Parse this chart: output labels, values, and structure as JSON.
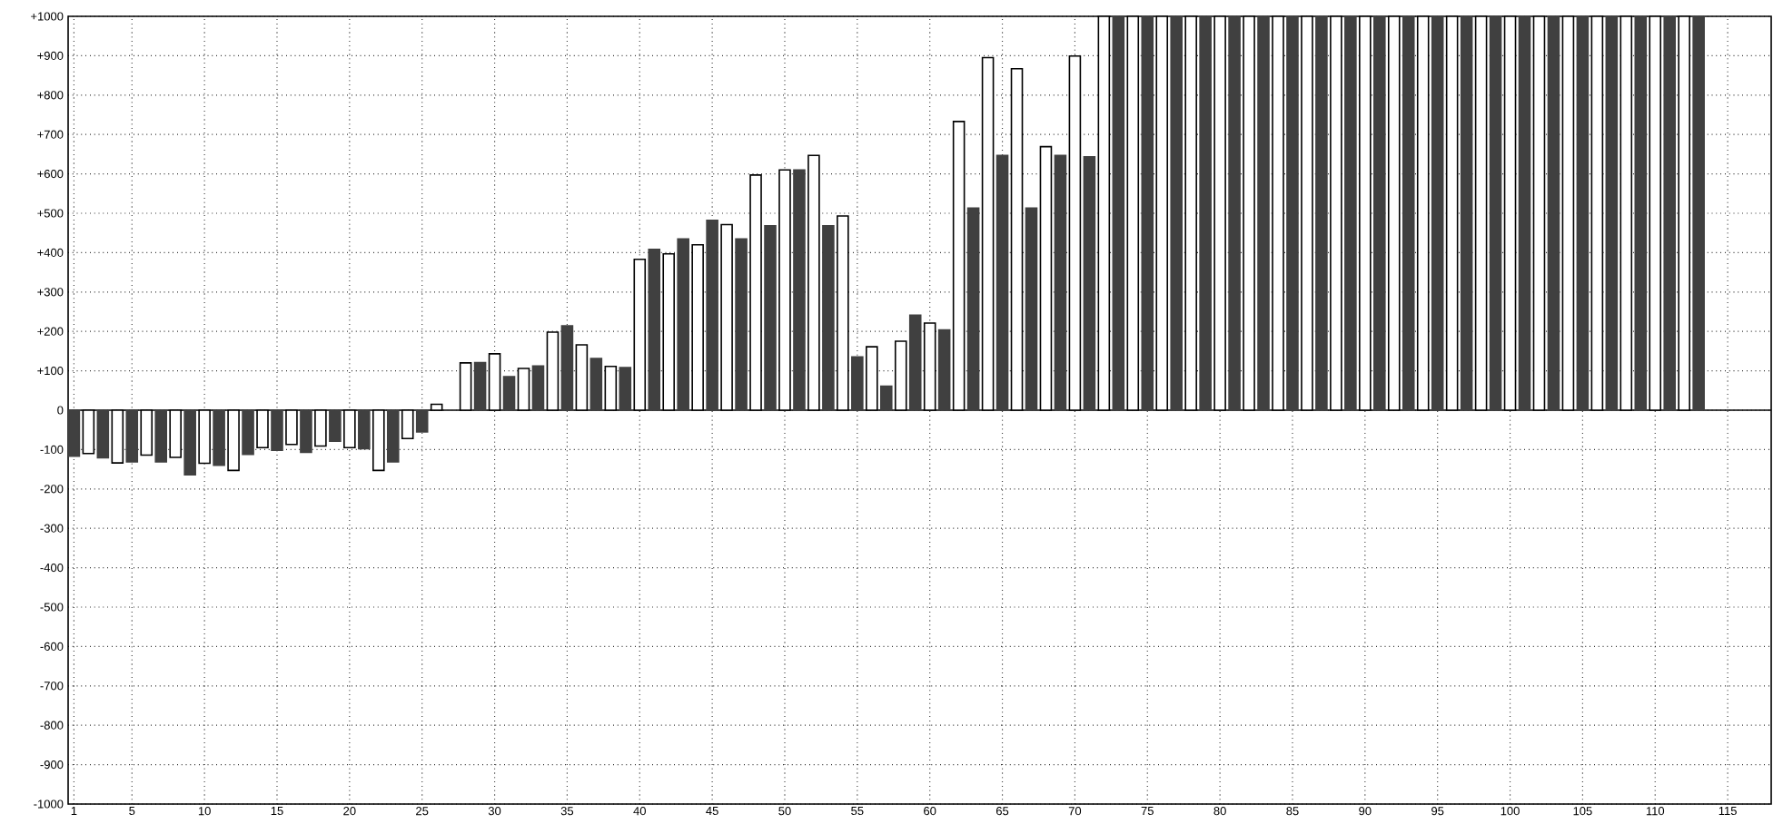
{
  "chart_data": {
    "type": "bar",
    "grid": true,
    "xlim": [
      0.6,
      118
    ],
    "xticks": [
      1,
      5,
      10,
      15,
      20,
      25,
      30,
      35,
      40,
      45,
      50,
      55,
      60,
      65,
      70,
      75,
      80,
      85,
      90,
      95,
      100,
      105,
      110,
      115
    ],
    "ylim": [
      -1000,
      1000
    ],
    "yticks": [
      {
        "value": -1000,
        "label": "-1000"
      },
      {
        "value": -900,
        "label": "-900"
      },
      {
        "value": -800,
        "label": "-800"
      },
      {
        "value": -700,
        "label": "-700"
      },
      {
        "value": -600,
        "label": "-600"
      },
      {
        "value": -500,
        "label": "-500"
      },
      {
        "value": -400,
        "label": "-400"
      },
      {
        "value": -300,
        "label": "-300"
      },
      {
        "value": -200,
        "label": "-200"
      },
      {
        "value": -100,
        "label": "-100"
      },
      0,
      {
        "value": 100,
        "label": "+100"
      },
      {
        "value": 200,
        "label": "+200"
      },
      {
        "value": 300,
        "label": "+300"
      },
      {
        "value": 400,
        "label": "+400"
      },
      {
        "value": 500,
        "label": "+500"
      },
      {
        "value": 600,
        "label": "+600"
      },
      {
        "value": 700,
        "label": "+700"
      },
      {
        "value": 800,
        "label": "+800"
      },
      {
        "value": 900,
        "label": "+900"
      },
      {
        "value": 1000,
        "label": "+1000"
      }
    ],
    "series": [
      {
        "color": "#404040",
        "x": [
          1,
          3,
          5,
          7,
          9,
          11,
          13,
          15,
          17,
          19,
          21,
          23,
          25,
          27,
          29,
          31,
          33,
          35,
          37,
          39,
          41,
          43,
          45,
          47,
          49,
          51,
          53,
          55,
          57,
          59,
          61,
          63,
          65,
          67,
          69,
          71,
          73,
          75,
          77,
          79,
          81,
          83,
          85,
          87,
          89,
          91,
          93,
          95,
          97,
          99,
          101,
          103,
          105,
          107,
          109,
          111,
          113
        ],
        "values": [
          -117,
          -121,
          -131,
          -131,
          -164,
          -140,
          -112,
          -102,
          -107,
          -79,
          -98,
          -131,
          -55,
          0,
          121,
          85,
          112,
          214,
          131,
          108,
          408,
          435,
          482,
          435,
          468,
          610,
          468,
          135,
          61,
          241,
          204,
          513,
          647,
          513,
          647,
          643,
          1000,
          1000,
          1000,
          1000,
          1000,
          1000,
          1000,
          1000,
          1000,
          1000,
          1000,
          1000,
          1000,
          1000,
          1000,
          1000,
          1000,
          1000,
          1000,
          1000,
          1000
        ]
      },
      {
        "color": "#ffffff",
        "x": [
          2,
          4,
          6,
          8,
          10,
          12,
          14,
          16,
          18,
          20,
          22,
          24,
          26,
          28,
          30,
          32,
          34,
          36,
          38,
          40,
          42,
          44,
          46,
          48,
          50,
          52,
          54,
          56,
          58,
          60,
          62,
          64,
          66,
          68,
          70,
          72,
          74,
          76,
          78,
          80,
          82,
          84,
          86,
          88,
          90,
          92,
          94,
          96,
          98,
          100,
          102,
          104,
          106,
          108,
          110,
          112
        ],
        "values": [
          -110,
          -134,
          -114,
          -120,
          -135,
          -153,
          -95,
          -87,
          -91,
          -95,
          -153,
          -72,
          15,
          120,
          143,
          106,
          198,
          166,
          111,
          383,
          397,
          420,
          471,
          597,
          610,
          647,
          493,
          161,
          175,
          221,
          733,
          895,
          867,
          669,
          899,
          1000,
          1000,
          1000,
          1000,
          1000,
          1000,
          1000,
          1000,
          1000,
          1000,
          1000,
          1000,
          1000,
          1000,
          1000,
          1000,
          1000,
          1000,
          1000,
          1000,
          1000
        ]
      }
    ]
  }
}
